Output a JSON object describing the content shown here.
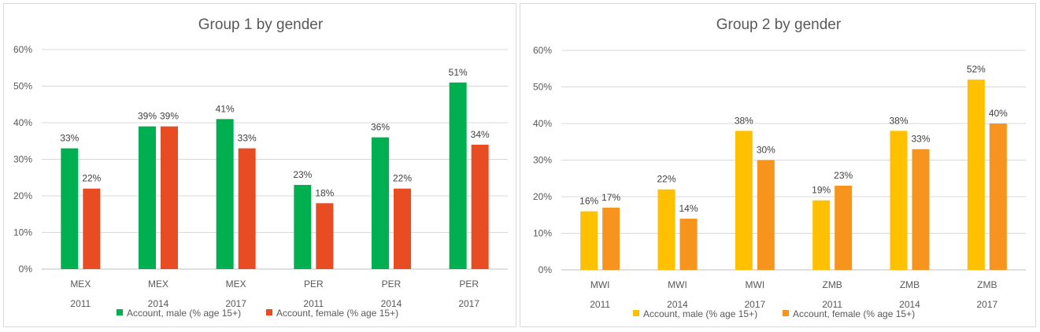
{
  "chart_data": [
    {
      "type": "bar",
      "title": "Group 1 by gender",
      "categories": [
        [
          "MEX",
          "2011"
        ],
        [
          "MEX",
          "2014"
        ],
        [
          "MEX",
          "2017"
        ],
        [
          "PER",
          "2011"
        ],
        [
          "PER",
          "2014"
        ],
        [
          "PER",
          "2017"
        ]
      ],
      "series": [
        {
          "name": "Account, male  (% age 15+)",
          "color": "#00b050",
          "values": [
            33,
            39,
            41,
            23,
            36,
            51
          ]
        },
        {
          "name": "Account, female  (% age 15+)",
          "color": "#e84c22",
          "values": [
            22,
            39,
            33,
            18,
            22,
            34
          ]
        }
      ],
      "ylim": [
        0,
        60
      ],
      "yticks": [
        "0%",
        "10%",
        "20%",
        "30%",
        "40%",
        "50%",
        "60%"
      ],
      "grid": true,
      "legend": "bottom",
      "xlabel": "",
      "ylabel": ""
    },
    {
      "type": "bar",
      "title": "Group 2 by gender",
      "categories": [
        [
          "MWI",
          "2011"
        ],
        [
          "MWI",
          "2014"
        ],
        [
          "MWI",
          "2017"
        ],
        [
          "ZMB",
          "2011"
        ],
        [
          "ZMB",
          "2014"
        ],
        [
          "ZMB",
          "2017"
        ]
      ],
      "series": [
        {
          "name": "Account, male  (% age 15+)",
          "color": "#ffc000",
          "values": [
            16,
            22,
            38,
            19,
            38,
            52
          ]
        },
        {
          "name": "Account, female  (% age 15+)",
          "color": "#f7941d",
          "values": [
            17,
            14,
            30,
            23,
            33,
            40
          ]
        }
      ],
      "ylim": [
        0,
        60
      ],
      "yticks": [
        "0%",
        "10%",
        "20%",
        "30%",
        "40%",
        "50%",
        "60%"
      ],
      "grid": true,
      "legend": "bottom",
      "xlabel": "",
      "ylabel": ""
    }
  ]
}
